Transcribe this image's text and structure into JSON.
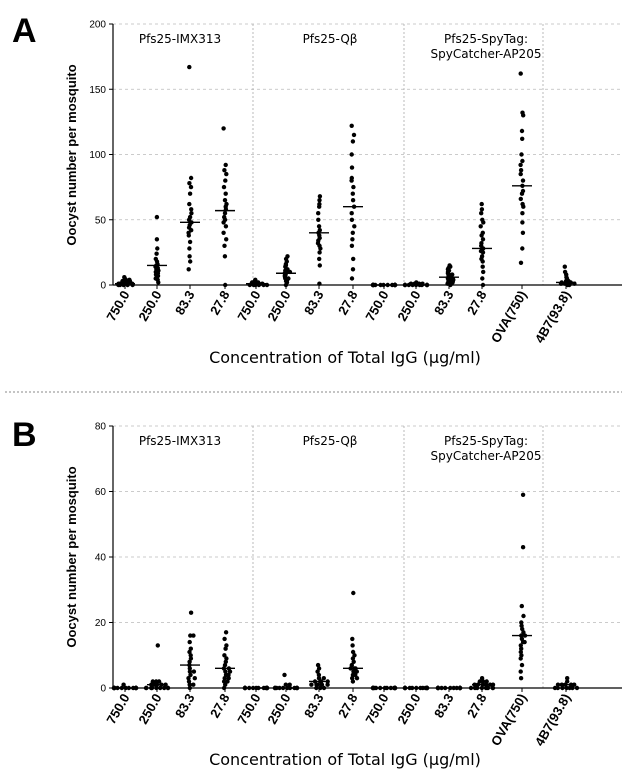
{
  "chart_data": [
    {
      "type": "scatter",
      "panel_label": "A",
      "ylabel": "Oocyst number per mosquito",
      "xlabel": "Concentration of Total IgG (μg/ml)",
      "ylim": [
        0,
        200
      ],
      "yticks": [
        0,
        50,
        100,
        150,
        200
      ],
      "grid": true,
      "groups": [
        {
          "label_lines": [
            "Pfs25-IMX313"
          ]
        },
        {
          "label_lines": [
            "Pfs25-Qβ"
          ]
        },
        {
          "label_lines": [
            "Pfs25-SpyTag:",
            "SpyCatcher-AP205"
          ]
        }
      ],
      "categories": [
        "750.0",
        "250.0",
        "83.3",
        "27.8",
        "750.0",
        "250.0",
        "83.3",
        "27.8",
        "750.0",
        "250.0",
        "83.3",
        "27.8",
        "OVA(750)",
        "4B7(93.8)"
      ],
      "means": [
        1,
        15,
        48,
        57,
        1,
        9,
        40,
        60,
        0,
        0,
        6,
        28,
        76,
        2
      ],
      "values": [
        [
          0,
          0,
          0,
          1,
          1,
          1,
          2,
          2,
          3,
          3,
          4,
          4,
          5,
          6,
          1,
          0,
          2,
          0,
          1,
          3
        ],
        [
          2,
          4,
          5,
          6,
          7,
          8,
          9,
          10,
          11,
          12,
          13,
          14,
          15,
          16,
          18,
          20,
          24,
          28,
          35,
          52
        ],
        [
          12,
          18,
          22,
          28,
          33,
          38,
          40,
          42,
          44,
          46,
          48,
          50,
          52,
          55,
          58,
          62,
          70,
          75,
          78,
          82,
          167
        ],
        [
          0,
          22,
          30,
          35,
          40,
          45,
          48,
          50,
          52,
          55,
          58,
          60,
          62,
          65,
          70,
          75,
          80,
          85,
          88,
          92,
          120
        ],
        [
          0,
          0,
          0,
          0,
          1,
          1,
          1,
          2,
          2,
          3,
          4,
          0,
          1,
          2,
          0
        ],
        [
          0,
          2,
          3,
          4,
          5,
          6,
          7,
          8,
          9,
          10,
          11,
          12,
          14,
          15,
          16,
          18,
          20,
          22,
          10,
          5
        ],
        [
          1,
          15,
          20,
          25,
          28,
          30,
          34,
          36,
          38,
          40,
          42,
          45,
          50,
          55,
          60,
          62,
          65,
          68,
          32
        ],
        [
          5,
          12,
          20,
          30,
          40,
          45,
          50,
          55,
          60,
          65,
          70,
          75,
          80,
          82,
          90,
          100,
          110,
          115,
          122,
          35
        ],
        [
          0,
          0,
          0,
          0,
          0,
          0,
          0,
          0,
          0,
          0,
          0,
          0,
          0,
          0,
          0,
          0,
          0,
          0,
          0,
          0
        ],
        [
          0,
          0,
          0,
          0,
          0,
          0,
          0,
          0,
          1,
          1,
          1,
          2,
          0,
          0,
          1,
          0
        ],
        [
          0,
          1,
          2,
          3,
          3,
          4,
          4,
          5,
          5,
          6,
          7,
          8,
          9,
          10,
          11,
          12,
          13,
          14,
          15,
          2,
          6,
          8
        ],
        [
          0,
          5,
          10,
          14,
          18,
          22,
          25,
          28,
          30,
          32,
          35,
          38,
          40,
          45,
          48,
          50,
          55,
          58,
          62,
          26,
          20
        ],
        [
          17,
          28,
          40,
          48,
          55,
          60,
          62,
          66,
          70,
          72,
          76,
          80,
          85,
          88,
          92,
          95,
          100,
          112,
          118,
          130,
          132,
          162
        ],
        [
          0,
          0,
          1,
          1,
          1,
          2,
          2,
          3,
          3,
          4,
          5,
          6,
          8,
          10,
          14,
          2,
          1
        ]
      ]
    },
    {
      "type": "scatter",
      "panel_label": "B",
      "ylabel": "Oocyst number per mosquito",
      "xlabel": "Concentration of Total IgG (μg/ml)",
      "ylim": [
        0,
        80
      ],
      "yticks": [
        0,
        20,
        40,
        60,
        80
      ],
      "grid": true,
      "groups": [
        {
          "label_lines": [
            "Pfs25-IMX313"
          ]
        },
        {
          "label_lines": [
            "Pfs25-Qβ"
          ]
        },
        {
          "label_lines": [
            "Pfs25-SpyTag:",
            "SpyCatcher-AP205"
          ]
        }
      ],
      "categories": [
        "750.0",
        "250.0",
        "83.3",
        "27.8",
        "750.0",
        "250.0",
        "83.3",
        "27.8",
        "750.0",
        "250.0",
        "83.3",
        "27.8",
        "OVA(750)",
        "4B7(93.8)"
      ],
      "means": [
        0,
        1,
        7,
        6,
        0,
        0,
        2,
        6,
        0,
        0,
        0,
        1,
        16,
        1
      ],
      "values": [
        [
          0,
          0,
          0,
          0,
          0,
          0,
          0,
          0,
          0,
          0,
          0,
          0,
          0,
          0,
          1,
          0,
          0,
          0
        ],
        [
          0,
          0,
          0,
          0,
          0,
          0,
          0,
          0,
          1,
          1,
          1,
          1,
          2,
          2,
          2,
          13,
          0,
          1
        ],
        [
          0,
          1,
          1,
          2,
          3,
          4,
          5,
          6,
          7,
          8,
          9,
          10,
          11,
          12,
          14,
          16,
          16,
          23,
          3,
          5
        ],
        [
          0,
          1,
          2,
          3,
          4,
          5,
          6,
          7,
          8,
          9,
          10,
          12,
          13,
          15,
          17,
          4,
          3,
          2,
          6,
          5
        ],
        [
          0,
          0,
          0,
          0,
          0,
          0,
          0,
          0,
          0,
          0,
          0,
          0,
          0,
          0,
          0,
          0,
          0,
          0
        ],
        [
          0,
          0,
          0,
          0,
          0,
          0,
          0,
          0,
          0,
          0,
          0,
          1,
          1,
          4,
          0,
          0
        ],
        [
          0,
          0,
          0,
          1,
          1,
          1,
          1,
          2,
          2,
          2,
          3,
          3,
          4,
          5,
          6,
          7,
          1,
          2
        ],
        [
          2,
          3,
          4,
          5,
          5,
          6,
          6,
          7,
          8,
          9,
          10,
          11,
          13,
          15,
          29,
          4,
          3,
          6
        ],
        [
          0,
          0,
          0,
          0,
          0,
          0,
          0,
          0,
          0,
          0,
          0,
          0,
          0,
          0,
          0,
          0,
          0,
          0
        ],
        [
          0,
          0,
          0,
          0,
          0,
          0,
          0,
          0,
          0,
          0,
          0,
          0,
          0,
          0,
          0,
          0,
          0,
          0
        ],
        [
          0,
          0,
          0,
          0,
          0,
          0,
          0,
          0,
          0,
          0,
          0,
          0,
          0,
          0,
          0,
          0,
          0,
          0
        ],
        [
          0,
          0,
          0,
          0,
          0,
          0,
          1,
          1,
          1,
          1,
          1,
          2,
          2,
          2,
          3,
          0,
          1,
          0
        ],
        [
          3,
          5,
          7,
          9,
          10,
          11,
          12,
          13,
          14,
          15,
          16,
          17,
          18,
          19,
          20,
          22,
          25,
          43,
          59,
          14,
          16
        ],
        [
          0,
          0,
          0,
          0,
          0,
          1,
          1,
          1,
          1,
          2,
          3,
          0,
          1,
          0
        ]
      ]
    }
  ]
}
